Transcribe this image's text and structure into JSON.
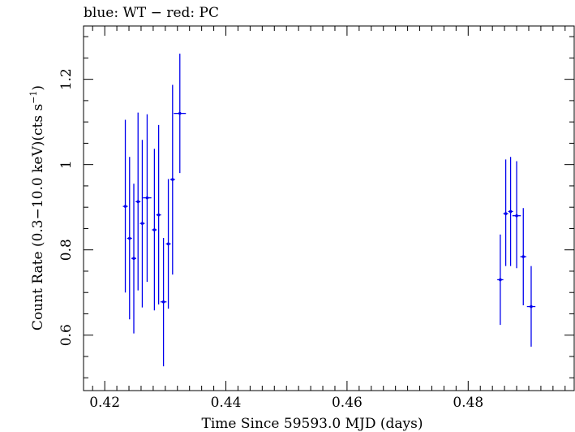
{
  "chart_data": {
    "type": "scatter",
    "title": "blue: WT − red: PC",
    "xlabel": "Time Since 59593.0 MJD (days)",
    "ylabel_parts": {
      "main": "Count Rate (0.3−10.0 keV)(cts s",
      "sup": "−1",
      "close": ")"
    },
    "xlim": [
      0.4165,
      0.4975
    ],
    "ylim": [
      0.47,
      1.325
    ],
    "x_ticks": [
      {
        "value": 0.42,
        "label": "0.42"
      },
      {
        "value": 0.44,
        "label": "0.44"
      },
      {
        "value": 0.46,
        "label": "0.46"
      },
      {
        "value": 0.48,
        "label": "0.48"
      }
    ],
    "y_ticks": [
      {
        "value": 0.6,
        "label": "0.6"
      },
      {
        "value": 0.8,
        "label": "0.8"
      },
      {
        "value": 1.0,
        "label": "1"
      },
      {
        "value": 1.2,
        "label": "1.2"
      }
    ],
    "grid": false,
    "series": [
      {
        "color": "#0000ee",
        "points": [
          {
            "x": 0.4234,
            "xerr": 0.0004,
            "y": 0.902,
            "ylo": 0.7,
            "yhi": 1.105
          },
          {
            "x": 0.4241,
            "xerr": 0.0004,
            "y": 0.827,
            "ylo": 0.637,
            "yhi": 1.018
          },
          {
            "x": 0.4248,
            "xerr": 0.0004,
            "y": 0.78,
            "ylo": 0.604,
            "yhi": 0.955
          },
          {
            "x": 0.4255,
            "xerr": 0.0004,
            "y": 0.913,
            "ylo": 0.705,
            "yhi": 1.122
          },
          {
            "x": 0.4262,
            "xerr": 0.0004,
            "y": 0.862,
            "ylo": 0.665,
            "yhi": 1.058
          },
          {
            "x": 0.427,
            "xerr": 0.0007,
            "y": 0.922,
            "ylo": 0.725,
            "yhi": 1.118
          },
          {
            "x": 0.4282,
            "xerr": 0.0004,
            "y": 0.847,
            "ylo": 0.658,
            "yhi": 1.037
          },
          {
            "x": 0.4289,
            "xerr": 0.0004,
            "y": 0.882,
            "ylo": 0.672,
            "yhi": 1.093
          },
          {
            "x": 0.4297,
            "xerr": 0.0005,
            "y": 0.678,
            "ylo": 0.527,
            "yhi": 0.828
          },
          {
            "x": 0.4305,
            "xerr": 0.0004,
            "y": 0.814,
            "ylo": 0.662,
            "yhi": 0.966
          },
          {
            "x": 0.4312,
            "xerr": 0.0004,
            "y": 0.965,
            "ylo": 0.742,
            "yhi": 1.187
          },
          {
            "x": 0.4324,
            "xerr": 0.001,
            "y": 1.12,
            "ylo": 0.98,
            "yhi": 1.26
          },
          {
            "x": 0.4853,
            "xerr": 0.0005,
            "y": 0.73,
            "ylo": 0.624,
            "yhi": 0.836
          },
          {
            "x": 0.4862,
            "xerr": 0.0004,
            "y": 0.885,
            "ylo": 0.762,
            "yhi": 1.012
          },
          {
            "x": 0.487,
            "xerr": 0.0004,
            "y": 0.89,
            "ylo": 0.762,
            "yhi": 1.018
          },
          {
            "x": 0.488,
            "xerr": 0.0007,
            "y": 0.88,
            "ylo": 0.757,
            "yhi": 1.008
          },
          {
            "x": 0.4891,
            "xerr": 0.0005,
            "y": 0.784,
            "ylo": 0.67,
            "yhi": 0.898
          },
          {
            "x": 0.4904,
            "xerr": 0.0007,
            "y": 0.667,
            "ylo": 0.573,
            "yhi": 0.762
          }
        ]
      }
    ]
  }
}
